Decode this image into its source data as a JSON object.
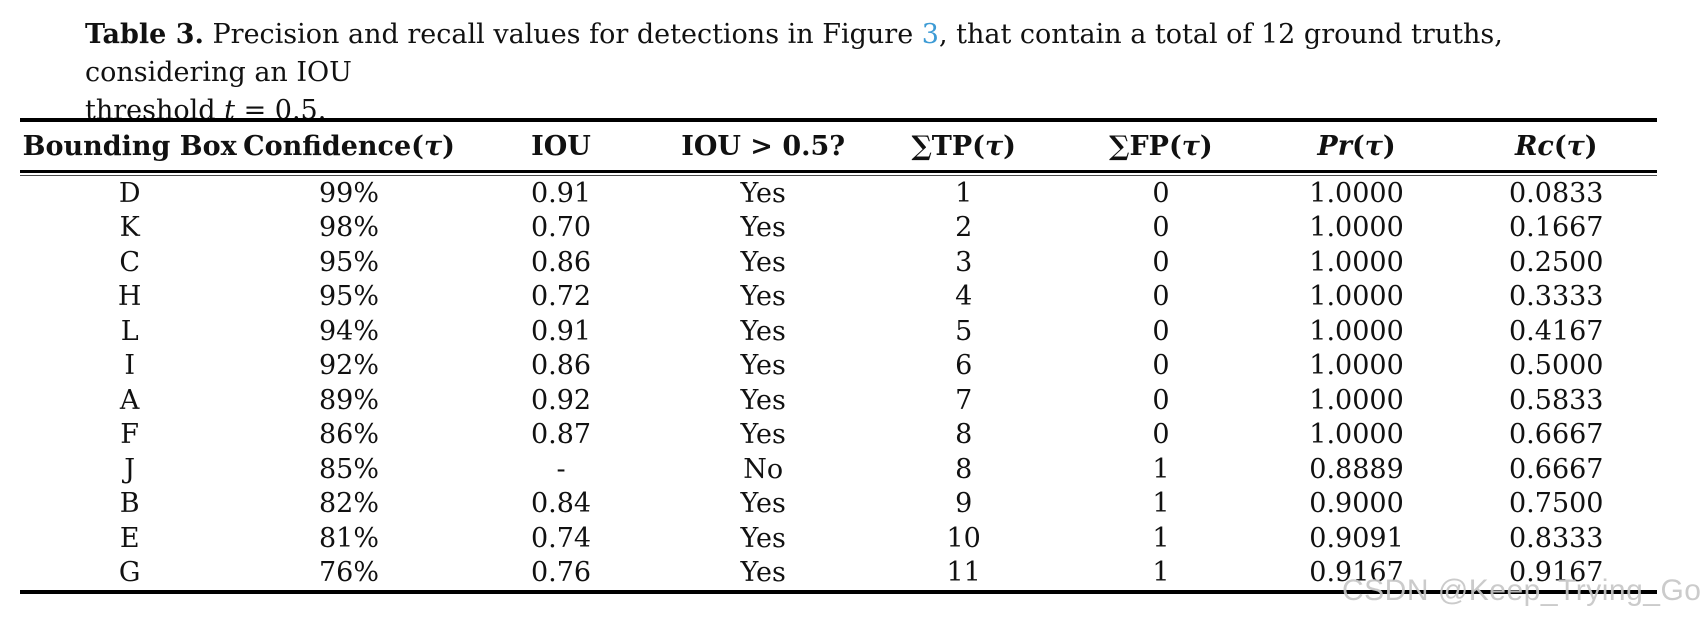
{
  "caption": {
    "label": "Table 3.",
    "line1_a": " Precision and recall values for detections in Figure ",
    "figure_link": "3",
    "line1_b": ", that contain a total of 12 ground truths, considering an IOU",
    "line2_a": "threshold ",
    "line2_var": "t",
    "line2_b": " = 0.5."
  },
  "table": {
    "headers": [
      {
        "id": "bounding-box",
        "parts": [
          {
            "text": "Bounding Box",
            "italic": false
          }
        ]
      },
      {
        "id": "confidence",
        "parts": [
          {
            "text": "Confidence(",
            "italic": false
          },
          {
            "text": "τ",
            "italic": true
          },
          {
            "text": ")",
            "italic": false
          }
        ]
      },
      {
        "id": "iou",
        "parts": [
          {
            "text": "IOU",
            "italic": false
          }
        ]
      },
      {
        "id": "iou-gt-05",
        "parts": [
          {
            "text": "IOU > 0.5?",
            "italic": false
          }
        ]
      },
      {
        "id": "sum-tp",
        "parts": [
          {
            "text": "∑TP(",
            "italic": false
          },
          {
            "text": "τ",
            "italic": true
          },
          {
            "text": ")",
            "italic": false
          }
        ]
      },
      {
        "id": "sum-fp",
        "parts": [
          {
            "text": "∑FP(",
            "italic": false
          },
          {
            "text": "τ",
            "italic": true
          },
          {
            "text": ")",
            "italic": false
          }
        ]
      },
      {
        "id": "precision",
        "parts": [
          {
            "text": "Pr",
            "italic": true
          },
          {
            "text": "(",
            "italic": false
          },
          {
            "text": "τ",
            "italic": true
          },
          {
            "text": ")",
            "italic": false
          }
        ]
      },
      {
        "id": "recall",
        "parts": [
          {
            "text": "Rc",
            "italic": true
          },
          {
            "text": "(",
            "italic": false
          },
          {
            "text": "τ",
            "italic": true
          },
          {
            "text": ")",
            "italic": false
          }
        ]
      }
    ],
    "rows": [
      [
        "D",
        "99%",
        "0.91",
        "Yes",
        "1",
        "0",
        "1.0000",
        "0.0833"
      ],
      [
        "K",
        "98%",
        "0.70",
        "Yes",
        "2",
        "0",
        "1.0000",
        "0.1667"
      ],
      [
        "C",
        "95%",
        "0.86",
        "Yes",
        "3",
        "0",
        "1.0000",
        "0.2500"
      ],
      [
        "H",
        "95%",
        "0.72",
        "Yes",
        "4",
        "0",
        "1.0000",
        "0.3333"
      ],
      [
        "L",
        "94%",
        "0.91",
        "Yes",
        "5",
        "0",
        "1.0000",
        "0.4167"
      ],
      [
        "I",
        "92%",
        "0.86",
        "Yes",
        "6",
        "0",
        "1.0000",
        "0.5000"
      ],
      [
        "A",
        "89%",
        "0.92",
        "Yes",
        "7",
        "0",
        "1.0000",
        "0.5833"
      ],
      [
        "F",
        "86%",
        "0.87",
        "Yes",
        "8",
        "0",
        "1.0000",
        "0.6667"
      ],
      [
        "J",
        "85%",
        "-",
        "No",
        "8",
        "1",
        "0.8889",
        "0.6667"
      ],
      [
        "B",
        "82%",
        "0.84",
        "Yes",
        "9",
        "1",
        "0.9000",
        "0.7500"
      ],
      [
        "E",
        "81%",
        "0.74",
        "Yes",
        "10",
        "1",
        "0.9091",
        "0.8333"
      ],
      [
        "G",
        "76%",
        "0.76",
        "Yes",
        "11",
        "1",
        "0.9167",
        "0.9167"
      ]
    ]
  },
  "watermark": {
    "text": "CSDN @Keep_Trying_Go"
  },
  "colors": {
    "link-blue": "#3d9bd5",
    "watermark-gray": "#c7c7c7"
  }
}
